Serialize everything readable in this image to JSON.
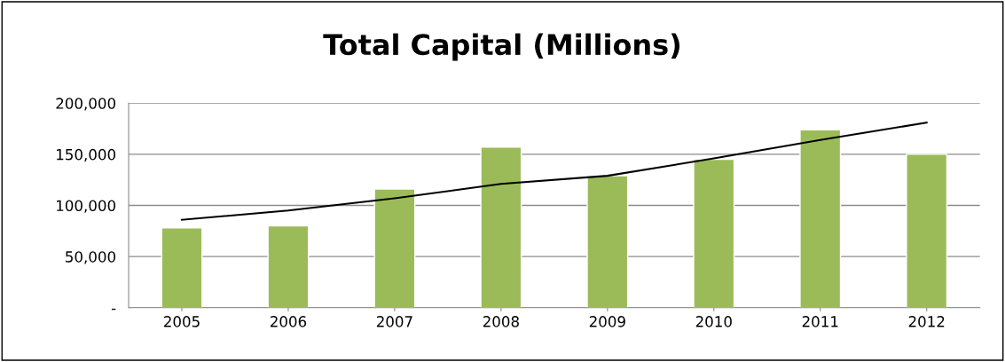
{
  "chart_data": {
    "type": "bar",
    "title": "Total Capital (Millions)",
    "categories": [
      "2005",
      "2006",
      "2007",
      "2008",
      "2009",
      "2010",
      "2011",
      "2012"
    ],
    "series": [
      {
        "color": "#9bbb59",
        "values": [
          78000,
          80000,
          116000,
          157000,
          129000,
          145000,
          174000,
          150000
        ]
      },
      {
        "type": "line",
        "color": "#000000",
        "values": [
          86000,
          95000,
          107000,
          121000,
          129000,
          146000,
          164000,
          181000
        ]
      }
    ],
    "ylim": [
      0,
      200000
    ],
    "yticks": [
      {
        "value": 0,
        "label": "-"
      },
      {
        "value": 50000,
        "label": "50,000"
      },
      {
        "value": 100000,
        "label": "100,000"
      },
      {
        "value": 150000,
        "label": "150,000"
      },
      {
        "value": 200000,
        "label": "200,000"
      }
    ],
    "grid": "y",
    "marker": "none",
    "line_style": "solid"
  }
}
